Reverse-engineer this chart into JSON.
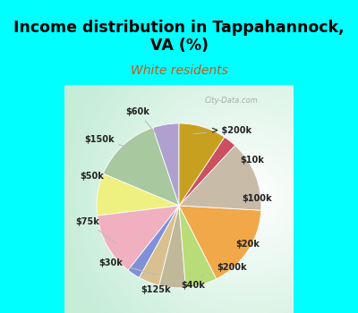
{
  "title": "Income distribution in Tappahannock,\nVA (%)",
  "subtitle": "White residents",
  "background_color": "#00FFFF",
  "labels": [
    "> $200k",
    "$10k",
    "$100k",
    "$20k",
    "$200k",
    "$40k",
    "$125k",
    "$30k",
    "$75k",
    "$50k",
    "$150k",
    "$60k"
  ],
  "values": [
    5.0,
    13.0,
    8.0,
    12.0,
    2.5,
    4.0,
    5.0,
    6.0,
    16.0,
    13.5,
    2.5,
    9.0
  ],
  "colors": [
    "#b0a0d0",
    "#a8c8a0",
    "#eef080",
    "#f0b0c0",
    "#8090d8",
    "#d8c090",
    "#c0b898",
    "#b8dc78",
    "#f0a848",
    "#c8bca8",
    "#cc5060",
    "#c8a020"
  ],
  "startangle": 90,
  "label_fontsize": 7,
  "title_fontsize": 12.5,
  "subtitle_fontsize": 10,
  "watermark": "City-Data.com",
  "label_color": "#222222",
  "line_color": "#bbbbbb",
  "subtitle_color": "#c85818"
}
